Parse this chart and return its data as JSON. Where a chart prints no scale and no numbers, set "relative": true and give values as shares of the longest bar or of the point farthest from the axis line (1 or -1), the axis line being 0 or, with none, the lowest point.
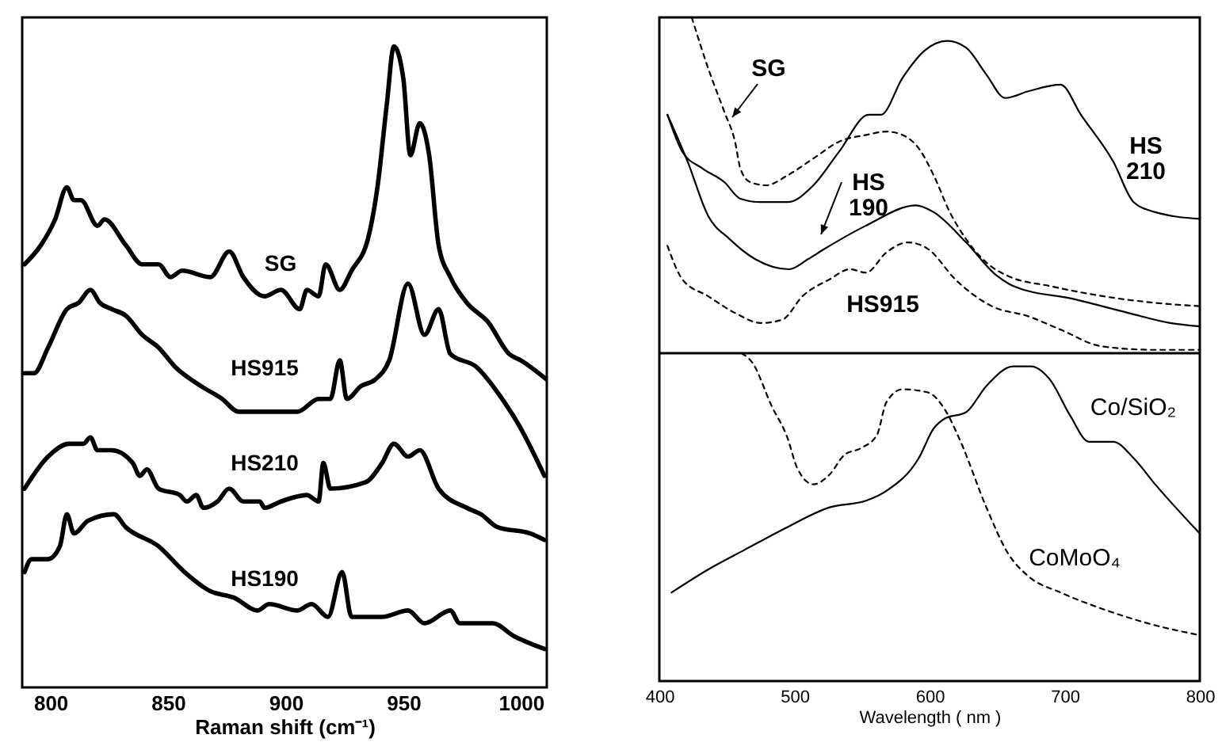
{
  "chart_data": [
    {
      "type": "line",
      "relative": true,
      "xlabel": "Raman shift (cm⁻¹)",
      "xlim": [
        788,
        1011
      ],
      "xticks": [
        800,
        850,
        900,
        950,
        1000
      ],
      "tick_labels": "x",
      "series": [
        {
          "name": "SG",
          "color": "#000000",
          "x": [
            789,
            796,
            802,
            807,
            810,
            813,
            820,
            823,
            832,
            839,
            846,
            851,
            856,
            868,
            876,
            882,
            891,
            898,
            906,
            909,
            914,
            917,
            923,
            928,
            935,
            939,
            943,
            946,
            950,
            953,
            957,
            961,
            965,
            970,
            977,
            986,
            995,
            1000,
            1011
          ],
          "values": [
            0.66,
            0.69,
            0.73,
            0.78,
            0.76,
            0.76,
            0.72,
            0.73,
            0.69,
            0.66,
            0.66,
            0.64,
            0.65,
            0.64,
            0.68,
            0.64,
            0.61,
            0.62,
            0.59,
            0.62,
            0.61,
            0.66,
            0.62,
            0.65,
            0.7,
            0.78,
            0.91,
            1.0,
            0.95,
            0.83,
            0.88,
            0.83,
            0.69,
            0.64,
            0.6,
            0.57,
            0.52,
            0.51,
            0.48
          ]
        },
        {
          "name": "HS915",
          "color": "#000000",
          "x": [
            789,
            793,
            799,
            807,
            812,
            817,
            821,
            826,
            832,
            839,
            846,
            853,
            864,
            873,
            880,
            891,
            896,
            905,
            914,
            919,
            923,
            926,
            932,
            938,
            944,
            952,
            959,
            965,
            970,
            981,
            992,
            999,
            1010
          ],
          "values": [
            0.49,
            0.49,
            0.53,
            0.59,
            0.6,
            0.62,
            0.6,
            0.59,
            0.58,
            0.55,
            0.53,
            0.5,
            0.47,
            0.45,
            0.43,
            0.43,
            0.43,
            0.43,
            0.45,
            0.45,
            0.51,
            0.45,
            0.47,
            0.48,
            0.51,
            0.63,
            0.55,
            0.59,
            0.52,
            0.5,
            0.45,
            0.41,
            0.33
          ]
        },
        {
          "name": "HS210",
          "color": "#000000",
          "x": [
            789,
            799,
            808,
            814,
            817,
            820,
            826,
            835,
            838,
            841,
            846,
            855,
            858,
            862,
            865,
            871,
            876,
            882,
            889,
            891,
            898,
            909,
            914,
            916,
            919,
            934,
            941,
            946,
            952,
            957,
            965,
            977,
            983,
            990,
            1004,
            1010
          ],
          "values": [
            0.31,
            0.36,
            0.38,
            0.38,
            0.39,
            0.37,
            0.37,
            0.35,
            0.33,
            0.34,
            0.31,
            0.3,
            0.29,
            0.3,
            0.28,
            0.29,
            0.31,
            0.29,
            0.29,
            0.28,
            0.29,
            0.3,
            0.29,
            0.35,
            0.31,
            0.32,
            0.35,
            0.38,
            0.36,
            0.37,
            0.31,
            0.28,
            0.27,
            0.25,
            0.24,
            0.23
          ]
        },
        {
          "name": "HS190",
          "color": "#000000",
          "x": [
            789,
            792,
            799,
            804,
            807,
            810,
            816,
            827,
            832,
            846,
            857,
            868,
            878,
            888,
            893,
            905,
            911,
            918,
            924,
            928,
            941,
            952,
            959,
            970,
            974,
            988,
            997,
            1010
          ],
          "values": [
            0.18,
            0.2,
            0.2,
            0.22,
            0.27,
            0.24,
            0.26,
            0.27,
            0.25,
            0.22,
            0.18,
            0.15,
            0.14,
            0.12,
            0.13,
            0.12,
            0.13,
            0.11,
            0.18,
            0.11,
            0.11,
            0.12,
            0.1,
            0.12,
            0.1,
            0.1,
            0.08,
            0.06
          ]
        }
      ]
    },
    {
      "type": "line",
      "relative": true,
      "xlim": [
        400,
        800
      ],
      "tick_labels": false,
      "series": [
        {
          "name": "SG",
          "color": "#000000",
          "line_style": "dashed",
          "x": [
            424,
            436,
            448,
            456,
            460,
            467,
            479,
            495,
            514,
            533,
            553,
            568,
            580,
            592,
            603,
            615,
            627,
            642,
            658,
            689,
            728,
            767,
            800
          ],
          "values": [
            1.0,
            0.85,
            0.72,
            0.63,
            0.55,
            0.51,
            0.5,
            0.53,
            0.58,
            0.63,
            0.65,
            0.66,
            0.65,
            0.61,
            0.53,
            0.42,
            0.34,
            0.27,
            0.23,
            0.2,
            0.17,
            0.15,
            0.14
          ]
        },
        {
          "name": "HS 210",
          "color": "#000000",
          "line_style": "solid",
          "x": [
            406,
            417,
            432,
            448,
            460,
            475,
            495,
            514,
            533,
            555,
            564,
            580,
            596,
            613,
            627,
            642,
            656,
            673,
            697,
            712,
            736,
            751,
            767,
            800
          ],
          "values": [
            0.71,
            0.6,
            0.55,
            0.51,
            0.46,
            0.45,
            0.45,
            0.5,
            0.6,
            0.71,
            0.71,
            0.82,
            0.9,
            0.93,
            0.91,
            0.83,
            0.76,
            0.78,
            0.8,
            0.71,
            0.57,
            0.45,
            0.42,
            0.4
          ]
        },
        {
          "name": "HS 190",
          "color": "#000000",
          "line_style": "solid",
          "x": [
            406,
            421,
            436,
            452,
            471,
            496,
            510,
            522,
            553,
            590,
            603,
            627,
            650,
            662,
            708,
            747,
            778,
            800
          ],
          "values": [
            0.71,
            0.57,
            0.41,
            0.34,
            0.28,
            0.25,
            0.28,
            0.31,
            0.38,
            0.44,
            0.42,
            0.33,
            0.23,
            0.2,
            0.16,
            0.12,
            0.09,
            0.08
          ]
        },
        {
          "name": "HS915",
          "color": "#000000",
          "line_style": "dashed",
          "x": [
            406,
            417,
            436,
            456,
            475,
            491,
            506,
            526,
            541,
            553,
            568,
            584,
            599,
            619,
            646,
            673,
            697,
            728,
            767,
            800
          ],
          "values": [
            0.32,
            0.22,
            0.17,
            0.12,
            0.09,
            0.1,
            0.17,
            0.22,
            0.25,
            0.24,
            0.3,
            0.33,
            0.31,
            0.22,
            0.14,
            0.11,
            0.07,
            0.02,
            0.01,
            0.01
          ]
        }
      ]
    },
    {
      "type": "line",
      "relative": true,
      "xlabel": "Wavelength ( nm )",
      "xlim": [
        400,
        800
      ],
      "xticks": [
        400,
        500,
        600,
        700,
        800
      ],
      "tick_labels": "x",
      "series": [
        {
          "name": "CoMoO₄",
          "color": "#000000",
          "line_style": "dashed",
          "x": [
            461,
            469,
            483,
            495,
            502,
            514,
            526,
            537,
            549,
            561,
            568,
            580,
            599,
            611,
            623,
            642,
            658,
            673,
            697,
            728,
            767,
            800
          ],
          "values": [
            1.0,
            0.97,
            0.84,
            0.74,
            0.65,
            0.6,
            0.63,
            0.69,
            0.71,
            0.75,
            0.85,
            0.89,
            0.88,
            0.83,
            0.73,
            0.53,
            0.39,
            0.32,
            0.27,
            0.22,
            0.17,
            0.14
          ]
        },
        {
          "name": "Co/SiO₂",
          "color": "#000000",
          "line_style": "solid",
          "x": [
            409,
            436,
            463,
            495,
            526,
            553,
            568,
            592,
            603,
            611,
            627,
            642,
            662,
            675,
            689,
            704,
            718,
            736,
            751,
            767,
            800
          ],
          "values": [
            0.27,
            0.34,
            0.4,
            0.47,
            0.53,
            0.55,
            0.58,
            0.68,
            0.77,
            0.8,
            0.82,
            0.9,
            0.96,
            0.96,
            0.92,
            0.81,
            0.73,
            0.73,
            0.68,
            0.6,
            0.45
          ]
        }
      ]
    }
  ]
}
